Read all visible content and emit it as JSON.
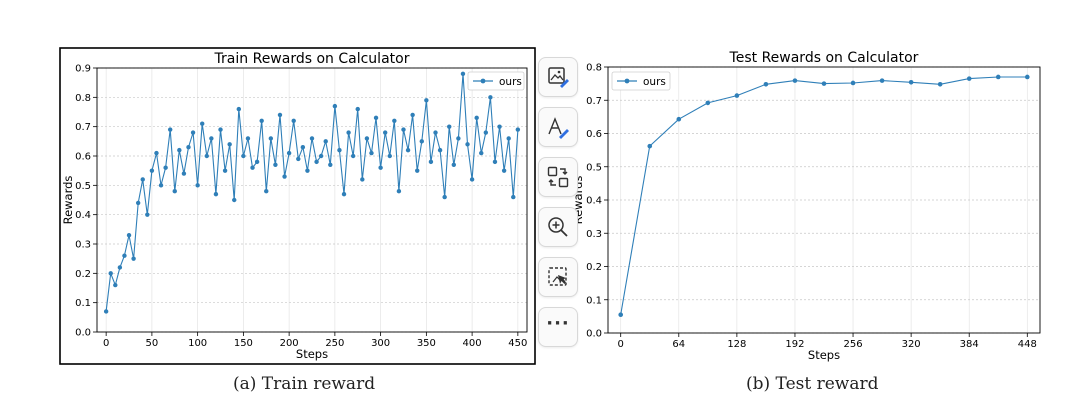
{
  "charts": {
    "train": {
      "chart_data": {
        "type": "line",
        "title": "Train Rewards on Calculator",
        "xlabel": "Steps",
        "ylabel": "Rewards",
        "xlim": [
          -10,
          460
        ],
        "ylim": [
          0,
          0.9
        ],
        "xticks": [
          0,
          50,
          100,
          150,
          200,
          250,
          300,
          350,
          400,
          450
        ],
        "yticks": [
          0.0,
          0.1,
          0.2,
          0.3,
          0.4,
          0.5,
          0.6,
          0.7,
          0.8,
          0.9
        ],
        "grid": true,
        "legend": "top-right",
        "series": [
          {
            "name": "ours",
            "color": "#2f7fb8",
            "x": [
              0,
              5,
              10,
              15,
              20,
              25,
              30,
              35,
              40,
              45,
              50,
              55,
              60,
              65,
              70,
              75,
              80,
              85,
              90,
              95,
              100,
              105,
              110,
              115,
              120,
              125,
              130,
              135,
              140,
              145,
              150,
              155,
              160,
              165,
              170,
              175,
              180,
              185,
              190,
              195,
              200,
              205,
              210,
              215,
              220,
              225,
              230,
              235,
              240,
              245,
              250,
              255,
              260,
              265,
              270,
              275,
              280,
              285,
              290,
              295,
              300,
              305,
              310,
              315,
              320,
              325,
              330,
              335,
              340,
              345,
              350,
              355,
              360,
              365,
              370,
              375,
              380,
              385,
              390,
              395,
              400,
              405,
              410,
              415,
              420,
              425,
              430,
              435,
              440,
              445,
              450
            ],
            "values": [
              0.07,
              0.2,
              0.16,
              0.22,
              0.26,
              0.33,
              0.25,
              0.44,
              0.52,
              0.4,
              0.55,
              0.61,
              0.5,
              0.56,
              0.69,
              0.48,
              0.62,
              0.54,
              0.63,
              0.68,
              0.5,
              0.71,
              0.6,
              0.66,
              0.47,
              0.69,
              0.55,
              0.64,
              0.45,
              0.76,
              0.6,
              0.66,
              0.56,
              0.58,
              0.72,
              0.48,
              0.66,
              0.57,
              0.74,
              0.53,
              0.61,
              0.72,
              0.59,
              0.63,
              0.55,
              0.66,
              0.58,
              0.6,
              0.65,
              0.57,
              0.77,
              0.62,
              0.47,
              0.68,
              0.6,
              0.76,
              0.52,
              0.66,
              0.61,
              0.73,
              0.56,
              0.68,
              0.6,
              0.72,
              0.48,
              0.69,
              0.62,
              0.74,
              0.55,
              0.65,
              0.79,
              0.58,
              0.68,
              0.62,
              0.46,
              0.7,
              0.57,
              0.66,
              0.88,
              0.64,
              0.52,
              0.73,
              0.61,
              0.68,
              0.8,
              0.58,
              0.7,
              0.55,
              0.66,
              0.46,
              0.69
            ]
          }
        ]
      }
    },
    "test": {
      "chart_data": {
        "type": "line",
        "title": "Test Rewards on Calculator",
        "xlabel": "Steps",
        "ylabel": "Rewards",
        "xlim": [
          -14,
          462
        ],
        "ylim": [
          0,
          0.8
        ],
        "xticks": [
          0,
          64,
          128,
          192,
          256,
          320,
          384,
          448
        ],
        "yticks": [
          0.0,
          0.1,
          0.2,
          0.3,
          0.4,
          0.5,
          0.6,
          0.7,
          0.8
        ],
        "grid": true,
        "legend": "top-left",
        "series": [
          {
            "name": "ours",
            "color": "#2f7fb8",
            "x": [
              0,
              32,
              64,
              96,
              128,
              160,
              192,
              224,
              256,
              288,
              320,
              352,
              384,
              416,
              448
            ],
            "values": [
              0.055,
              0.562,
              0.643,
              0.692,
              0.714,
              0.748,
              0.759,
              0.75,
              0.752,
              0.759,
              0.754,
              0.748,
              0.765,
              0.77,
              0.77
            ]
          }
        ]
      }
    }
  },
  "captions": {
    "train": "(a) Train reward",
    "test": "(b) Test reward"
  },
  "toolbar": {
    "items": [
      {
        "icon": "image-edit-icon"
      },
      {
        "icon": "text-edit-icon"
      },
      {
        "icon": "convert-icon"
      },
      {
        "icon": "zoom-in-icon"
      },
      {
        "icon": "select-area-icon"
      },
      {
        "icon": "more-icon"
      }
    ]
  }
}
